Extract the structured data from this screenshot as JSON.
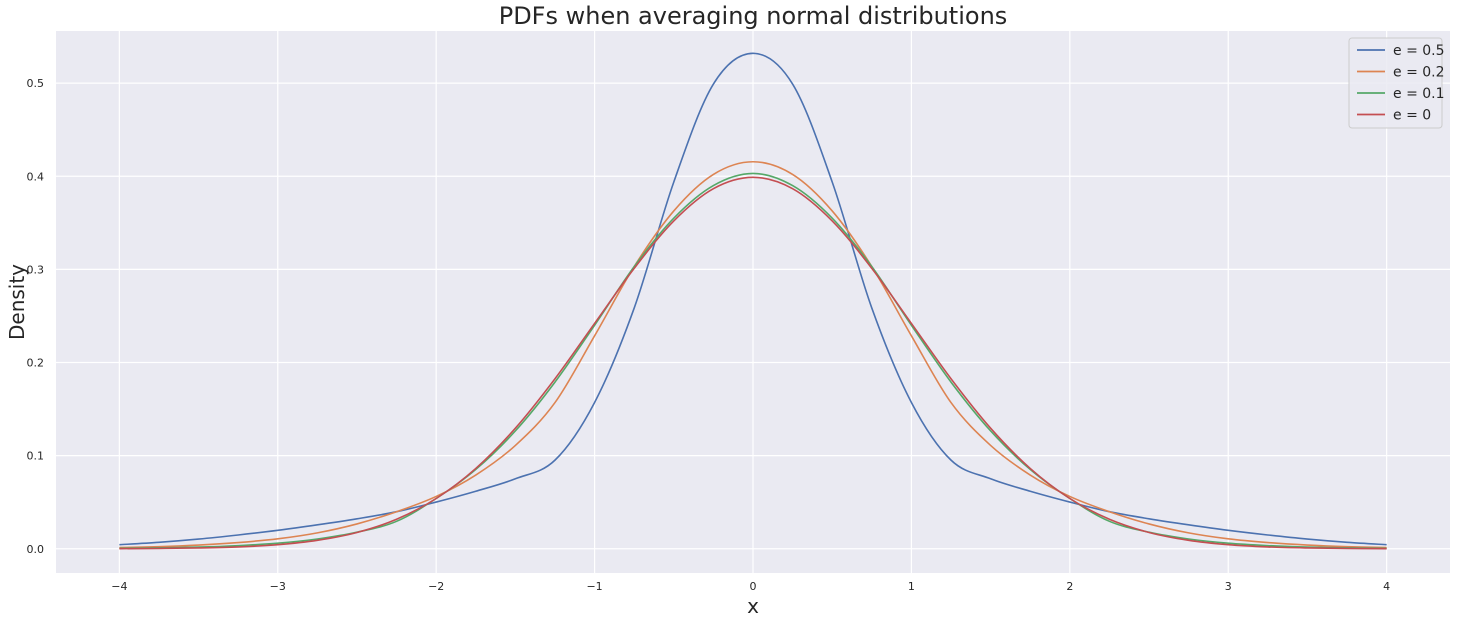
{
  "chart_data": {
    "type": "line",
    "title": "PDFs when averaging normal distributions",
    "xlabel": "x",
    "ylabel": "Density",
    "xlim": [
      -4.4,
      4.4
    ],
    "ylim": [
      -0.026,
      0.556
    ],
    "xticks": [
      -4,
      -3,
      -2,
      -1,
      0,
      1,
      2,
      3,
      4
    ],
    "xtick_labels": [
      "−4",
      "−3",
      "−2",
      "−1",
      "0",
      "1",
      "2",
      "3",
      "4"
    ],
    "yticks": [
      0.0,
      0.1,
      0.2,
      0.3,
      0.4,
      0.5
    ],
    "ytick_labels": [
      "0.0",
      "0.1",
      "0.2",
      "0.3",
      "0.4",
      "0.5"
    ],
    "grid": true,
    "legend_position": "top-right",
    "background_color": "#eaeaf2",
    "x": [
      -4.0,
      -3.75,
      -3.5,
      -3.25,
      -3.0,
      -2.75,
      -2.5,
      -2.25,
      -2.0,
      -1.75,
      -1.5,
      -1.25,
      -1.0,
      -0.75,
      -0.5,
      -0.25,
      0.0,
      0.25,
      0.5,
      0.75,
      1.0,
      1.25,
      1.5,
      1.75,
      2.0,
      2.25,
      2.5,
      2.75,
      3.0,
      3.25,
      3.5,
      3.75,
      4.0
    ],
    "series": [
      {
        "name": "e = 0.5",
        "color": "#4c72b0",
        "values": [
          0.0044,
          0.0069,
          0.0104,
          0.0148,
          0.0198,
          0.0257,
          0.0322,
          0.0398,
          0.0502,
          0.0618,
          0.0752,
          0.0952,
          0.1571,
          0.2585,
          0.3939,
          0.499,
          0.532,
          0.499,
          0.3939,
          0.2585,
          0.1571,
          0.0952,
          0.0752,
          0.0618,
          0.0502,
          0.0398,
          0.0322,
          0.0257,
          0.0198,
          0.0148,
          0.0104,
          0.0069,
          0.0044
        ]
      },
      {
        "name": "e = 0.2",
        "color": "#dd8452",
        "values": [
          0.0013,
          0.0023,
          0.004,
          0.0067,
          0.0107,
          0.0171,
          0.0267,
          0.0398,
          0.0562,
          0.0792,
          0.111,
          0.157,
          0.2287,
          0.3031,
          0.3628,
          0.402,
          0.4156,
          0.402,
          0.3628,
          0.3031,
          0.2287,
          0.157,
          0.111,
          0.0792,
          0.0562,
          0.0398,
          0.0267,
          0.0171,
          0.0107,
          0.0067,
          0.004,
          0.0023,
          0.0013
        ]
      },
      {
        "name": "e = 0.1",
        "color": "#55a868",
        "values": [
          0.0005,
          0.001,
          0.0018,
          0.0034,
          0.006,
          0.0105,
          0.0178,
          0.0295,
          0.054,
          0.0852,
          0.1266,
          0.179,
          0.24,
          0.303,
          0.355,
          0.39,
          0.403,
          0.39,
          0.355,
          0.303,
          0.24,
          0.179,
          0.1266,
          0.0852,
          0.054,
          0.0295,
          0.0178,
          0.0105,
          0.006,
          0.0034,
          0.0018,
          0.001,
          0.0005
        ]
      },
      {
        "name": "e = 0",
        "color": "#c44e52",
        "values": [
          0.0001,
          0.0004,
          0.0009,
          0.002,
          0.0044,
          0.0091,
          0.0175,
          0.0317,
          0.054,
          0.0863,
          0.1295,
          0.1826,
          0.242,
          0.3011,
          0.3521,
          0.3867,
          0.3989,
          0.3867,
          0.3521,
          0.3011,
          0.242,
          0.1826,
          0.1295,
          0.0863,
          0.054,
          0.0317,
          0.0175,
          0.0091,
          0.0044,
          0.002,
          0.0009,
          0.0004,
          0.0001
        ]
      }
    ]
  }
}
